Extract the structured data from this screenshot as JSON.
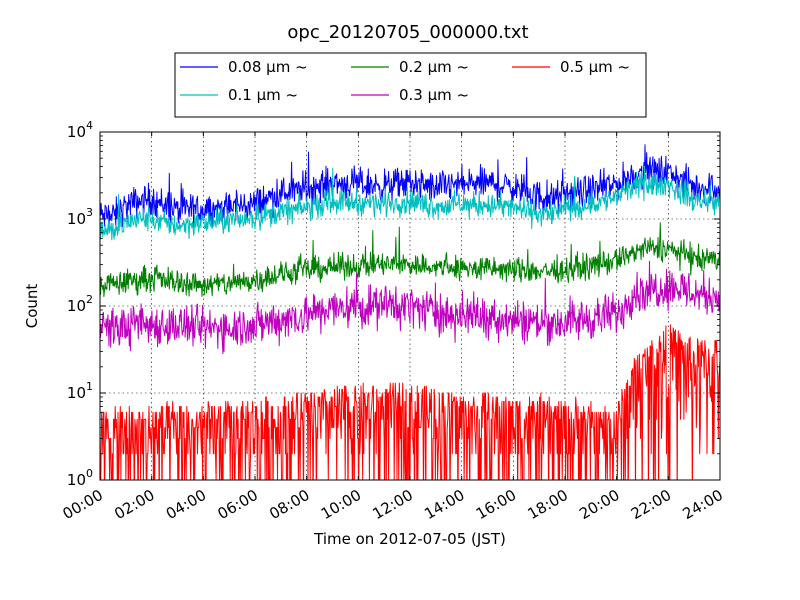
{
  "chart_data": {
    "type": "line",
    "title": "opc_20120705_000000.txt",
    "xlabel": "Time on 2012-07-05 (JST)",
    "ylabel": "Count",
    "y_scale": "log",
    "ylim": [
      1,
      10000
    ],
    "y_ticks": [
      {
        "value": 1,
        "base": "10",
        "exp": "0"
      },
      {
        "value": 10,
        "base": "10",
        "exp": "1"
      },
      {
        "value": 100,
        "base": "10",
        "exp": "2"
      },
      {
        "value": 1000,
        "base": "10",
        "exp": "3"
      },
      {
        "value": 10000,
        "base": "10",
        "exp": "4"
      }
    ],
    "xlim": [
      "00:00",
      "24:00"
    ],
    "x_hours": [
      0,
      2,
      4,
      6,
      8,
      10,
      12,
      14,
      16,
      18,
      20,
      22,
      24
    ],
    "x_tick_labels": [
      "00:00",
      "02:00",
      "04:00",
      "06:00",
      "08:00",
      "10:00",
      "12:00",
      "14:00",
      "16:00",
      "18:00",
      "20:00",
      "22:00",
      "24:00"
    ],
    "grid": true,
    "legend": {
      "placement": "top-center, above plot",
      "columns": 3
    },
    "series": [
      {
        "name": "0.08 μm ~",
        "color": "#0000ff",
        "noise": 0.09,
        "x": [
          0,
          0.5,
          1,
          1.5,
          2,
          2.5,
          3,
          4,
          5,
          6,
          7,
          8,
          9,
          10,
          11,
          12,
          13,
          14,
          15,
          16,
          17,
          17.5,
          18,
          19,
          20,
          20.5,
          21,
          22,
          22.5,
          23,
          24
        ],
        "values": [
          1100,
          1050,
          1400,
          1600,
          1700,
          1450,
          1250,
          1300,
          1350,
          1500,
          2000,
          2200,
          2600,
          2500,
          2400,
          2600,
          2300,
          2500,
          2600,
          2300,
          1800,
          1700,
          1900,
          2100,
          2500,
          3000,
          3500,
          3500,
          2800,
          2300,
          2300
        ]
      },
      {
        "name": "0.1 μm ~",
        "color": "#00bfbf",
        "noise": 0.07,
        "x": [
          0,
          0.5,
          1,
          1.5,
          2,
          2.5,
          3,
          4,
          5,
          6,
          7,
          8,
          9,
          10,
          11,
          12,
          13,
          14,
          15,
          16,
          17,
          17.5,
          18,
          19,
          20,
          20.5,
          21,
          22,
          22.5,
          23,
          24
        ],
        "values": [
          750,
          720,
          900,
          1000,
          1000,
          900,
          850,
          900,
          950,
          1050,
          1200,
          1350,
          1600,
          1550,
          1500,
          1600,
          1400,
          1450,
          1450,
          1350,
          1150,
          1150,
          1300,
          1450,
          1800,
          2200,
          2500,
          2500,
          2000,
          1600,
          1600
        ]
      },
      {
        "name": "0.2 μm ~",
        "color": "#008000",
        "noise": 0.07,
        "x": [
          0,
          1,
          2,
          3,
          4,
          5,
          6,
          7,
          8,
          9,
          10,
          11,
          12,
          13,
          14,
          15,
          16,
          17,
          18,
          19,
          19.5,
          20,
          20.5,
          21,
          22,
          22.5,
          23,
          24
        ],
        "values": [
          170,
          190,
          210,
          190,
          175,
          180,
          200,
          230,
          260,
          280,
          290,
          300,
          300,
          280,
          270,
          270,
          260,
          250,
          260,
          290,
          310,
          330,
          400,
          450,
          460,
          400,
          340,
          330
        ]
      },
      {
        "name": "0.3 μm ~",
        "color": "#bf00bf",
        "noise": 0.12,
        "x": [
          0,
          1,
          2,
          3,
          4,
          5,
          6,
          7,
          8,
          9,
          10,
          11,
          12,
          13,
          14,
          15,
          16,
          17,
          18,
          19,
          20,
          20.3,
          20.6,
          21,
          22,
          22.5,
          23,
          24
        ],
        "values": [
          55,
          58,
          62,
          60,
          55,
          58,
          60,
          70,
          80,
          92,
          100,
          102,
          100,
          85,
          78,
          75,
          70,
          65,
          65,
          72,
          80,
          100,
          140,
          150,
          170,
          160,
          140,
          130
        ]
      },
      {
        "name": "0.5 μm ~",
        "color": "#ff0000",
        "noise": 0.35,
        "x": [
          0,
          2,
          4,
          6,
          8,
          10,
          12,
          14,
          16,
          18,
          19.5,
          20,
          20.4,
          20.8,
          21.5,
          22,
          22.5,
          23,
          24
        ],
        "values": [
          3,
          3.5,
          3.5,
          4,
          5,
          6,
          6,
          5,
          4.5,
          4,
          3.5,
          3.5,
          8,
          15,
          22,
          30,
          25,
          20,
          22
        ]
      }
    ]
  }
}
